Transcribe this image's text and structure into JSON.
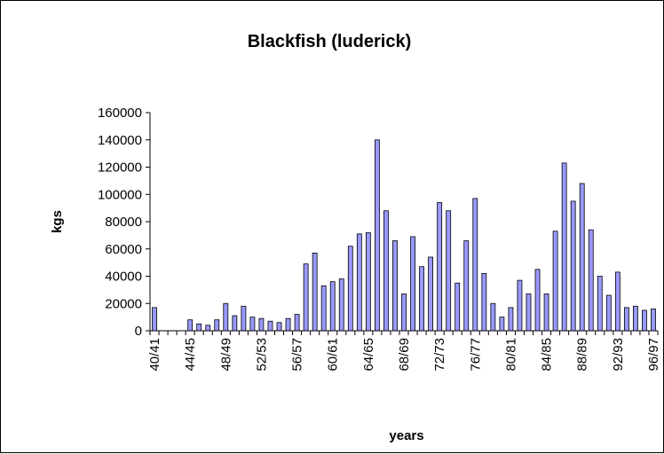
{
  "chart_data": {
    "type": "bar",
    "title": "Blackfish (luderick)",
    "xlabel": "years",
    "ylabel": "kgs",
    "ylim": [
      0,
      160000
    ],
    "yticks": [
      0,
      20000,
      40000,
      60000,
      80000,
      100000,
      120000,
      140000,
      160000
    ],
    "grid": false,
    "legend": "none",
    "bar_color": "#9999ff",
    "categories": [
      "40/41",
      "41/42",
      "42/43",
      "43/44",
      "44/45",
      "45/46",
      "46/47",
      "47/48",
      "48/49",
      "49/50",
      "50/51",
      "51/52",
      "52/53",
      "53/54",
      "54/55",
      "55/56",
      "56/57",
      "57/58",
      "58/59",
      "59/60",
      "60/61",
      "61/62",
      "62/63",
      "63/64",
      "64/65",
      "65/66",
      "66/67",
      "67/68",
      "68/69",
      "69/70",
      "70/71",
      "71/72",
      "72/73",
      "73/74",
      "74/75",
      "75/76",
      "76/77",
      "77/78",
      "78/79",
      "79/80",
      "80/81",
      "81/82",
      "82/83",
      "83/84",
      "84/85",
      "85/86",
      "86/87",
      "87/88",
      "88/89",
      "89/90",
      "90/91",
      "91/92",
      "92/93",
      "93/94",
      "94/95",
      "95/96",
      "96/97"
    ],
    "tick_labels": [
      "40/41",
      "44/45",
      "48/49",
      "52/53",
      "56/57",
      "60/61",
      "64/65",
      "68/69",
      "72/73",
      "76/77",
      "80/81",
      "84/85",
      "88/89",
      "92/93",
      "96/97"
    ],
    "values": [
      17000,
      0,
      0,
      0,
      8000,
      5000,
      4000,
      8000,
      20000,
      11000,
      18000,
      10000,
      9000,
      7000,
      6000,
      9000,
      12000,
      49000,
      57000,
      33000,
      36000,
      38000,
      62000,
      71000,
      72000,
      140000,
      88000,
      66000,
      27000,
      69000,
      47000,
      54000,
      94000,
      88000,
      35000,
      66000,
      97000,
      42000,
      20000,
      10000,
      17000,
      37000,
      27000,
      45000,
      27000,
      73000,
      123000,
      95000,
      108000,
      74000,
      40000,
      26000,
      43000,
      17000,
      18000,
      15000,
      16000
    ]
  }
}
